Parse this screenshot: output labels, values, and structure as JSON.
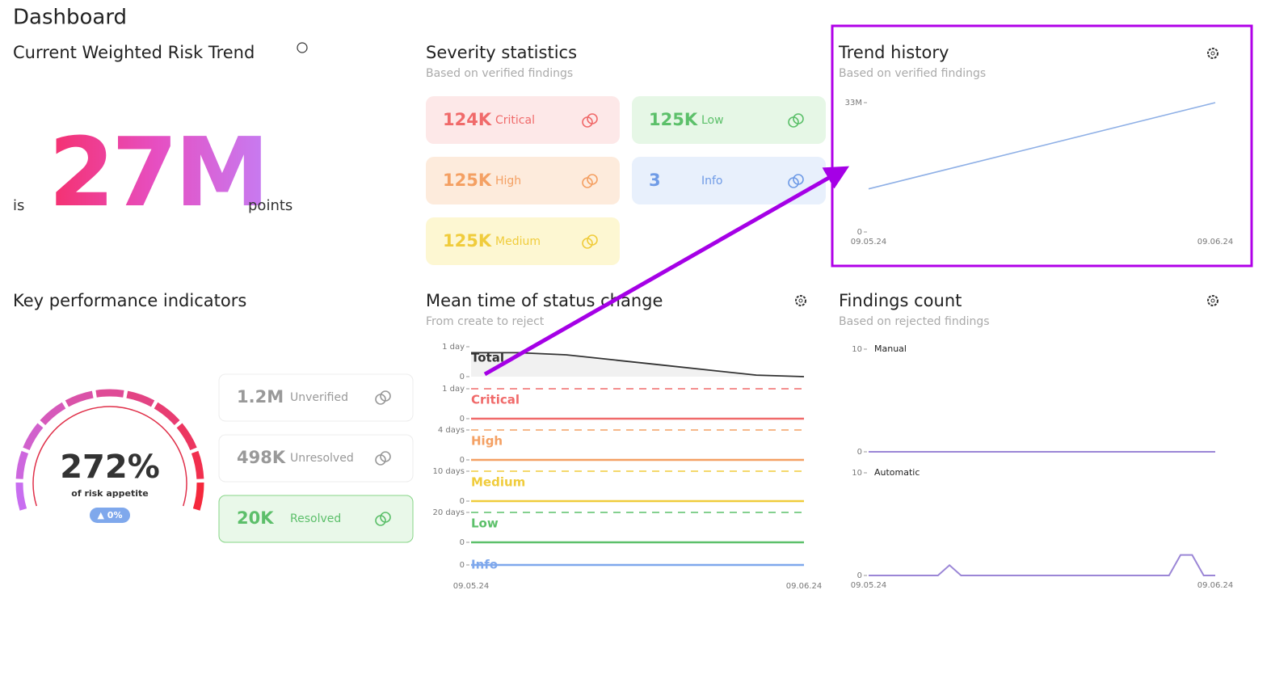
{
  "header": {
    "title": "Dashboard"
  },
  "risk": {
    "title": "Current Weighted Risk Trend",
    "prefix": "is",
    "value": "27M",
    "suffix": "points"
  },
  "severity": {
    "title": "Severity statistics",
    "subtitle": "Based on verified findings",
    "cards": [
      {
        "value": "124K",
        "label": "Critical"
      },
      {
        "value": "125K",
        "label": "Low"
      },
      {
        "value": "125K",
        "label": "High"
      },
      {
        "value": "3",
        "label": "Info"
      },
      {
        "value": "125K",
        "label": "Medium"
      }
    ]
  },
  "trend": {
    "title": "Trend history",
    "subtitle": "Based on verified findings",
    "x_labels": [
      "09.05.24",
      "09.06.24"
    ],
    "ylim": [
      0,
      33000000
    ],
    "yticks": [
      0,
      {
        "value": 33000000,
        "label": "33M"
      }
    ],
    "values": [
      11000000,
      33000000
    ],
    "color": "#8fb0e6"
  },
  "kpi": {
    "title": "Key performance indicators",
    "gauge": {
      "value": "272%",
      "label": "of risk appetite",
      "change": "▲ 0%"
    },
    "cards": [
      {
        "value": "1.2M",
        "label": "Unverified"
      },
      {
        "value": "498K",
        "label": "Unresolved"
      },
      {
        "value": "20K",
        "label": "Resolved"
      }
    ]
  },
  "mttc": {
    "title": "Mean time of status change",
    "subtitle": "From create to reject",
    "x_labels": [
      "09.05.24",
      "09.06.24"
    ],
    "strips": [
      {
        "name": "Total",
        "color": "#333333",
        "ylim": [
          0,
          1
        ],
        "yticks": [
          0,
          {
            "value": 1,
            "label": "1 day"
          }
        ],
        "values": [
          0.8,
          0.8,
          0.73,
          0.56,
          0.39,
          0.22,
          0.05,
          0
        ]
      },
      {
        "name": "Critical",
        "color": "#f06a6a",
        "ylim": [
          0,
          1
        ],
        "yticks": [
          0,
          {
            "value": 1,
            "label": "1 day"
          }
        ],
        "values": [
          0,
          0
        ]
      },
      {
        "name": "High",
        "color": "#f4a063",
        "ylim": [
          0,
          4
        ],
        "yticks": [
          0,
          {
            "value": 4,
            "label": "4 days"
          }
        ],
        "values": [
          0,
          0
        ]
      },
      {
        "name": "Medium",
        "color": "#f0cc3c",
        "ylim": [
          0,
          10
        ],
        "yticks": [
          0,
          {
            "value": 10,
            "label": "10 days"
          }
        ],
        "values": [
          0,
          0
        ]
      },
      {
        "name": "Low",
        "color": "#5cc06a",
        "ylim": [
          0,
          20
        ],
        "yticks": [
          0,
          {
            "value": 20,
            "label": "20 days"
          }
        ],
        "values": [
          0,
          0
        ]
      },
      {
        "name": "Info",
        "color": "#7fa8ec",
        "ylim": [
          0,
          1
        ],
        "yticks": [
          0
        ],
        "values": [
          0,
          0
        ]
      }
    ]
  },
  "findings": {
    "title": "Findings count",
    "subtitle": "Based on rejected findings",
    "x_labels": [
      "09.05.24",
      "09.06.24"
    ],
    "panels": [
      {
        "name": "Manual",
        "color": "#9b86d6",
        "ylim": [
          0,
          10
        ],
        "yticks": [
          0,
          10
        ],
        "values": [
          0,
          0
        ]
      },
      {
        "name": "Automatic",
        "color": "#9b86d6",
        "ylim": [
          0,
          10
        ],
        "yticks": [
          0,
          10
        ],
        "values": [
          0,
          0,
          0,
          0,
          0,
          0,
          0,
          1,
          0,
          0,
          0,
          0,
          0,
          0,
          0,
          0,
          0,
          0,
          0,
          0,
          0,
          0,
          0,
          0,
          0,
          0,
          0,
          2,
          2,
          0,
          0
        ]
      }
    ]
  }
}
